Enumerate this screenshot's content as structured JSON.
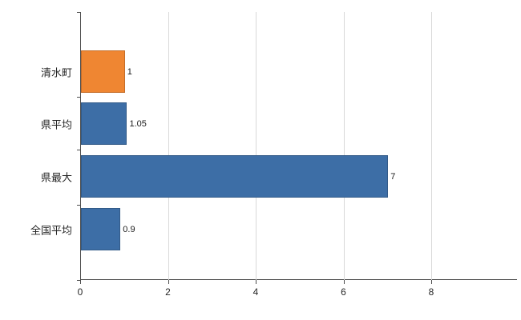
{
  "chart_data": {
    "type": "bar",
    "orientation": "horizontal",
    "title": "",
    "xlabel": "",
    "ylabel": "",
    "categories": [
      "清水町",
      "県平均",
      "県最大",
      "全国平均"
    ],
    "values": [
      1,
      1.05,
      7,
      0.9
    ],
    "value_labels": [
      "1",
      "1.05",
      "7",
      "0.9"
    ],
    "bar_colors": [
      "#ef8632",
      "#3d6ea6",
      "#3d6ea6",
      "#3d6ea6"
    ],
    "xlim": [
      0,
      8
    ],
    "x_ticks": [
      0,
      2,
      4,
      6,
      8
    ],
    "grid": true,
    "legend": "none",
    "colors": {
      "highlight_orange": "#ef8632",
      "base_blue": "#3d6ea6",
      "gridline": "#d9d9d9",
      "axis": "#4d4d4d"
    }
  }
}
